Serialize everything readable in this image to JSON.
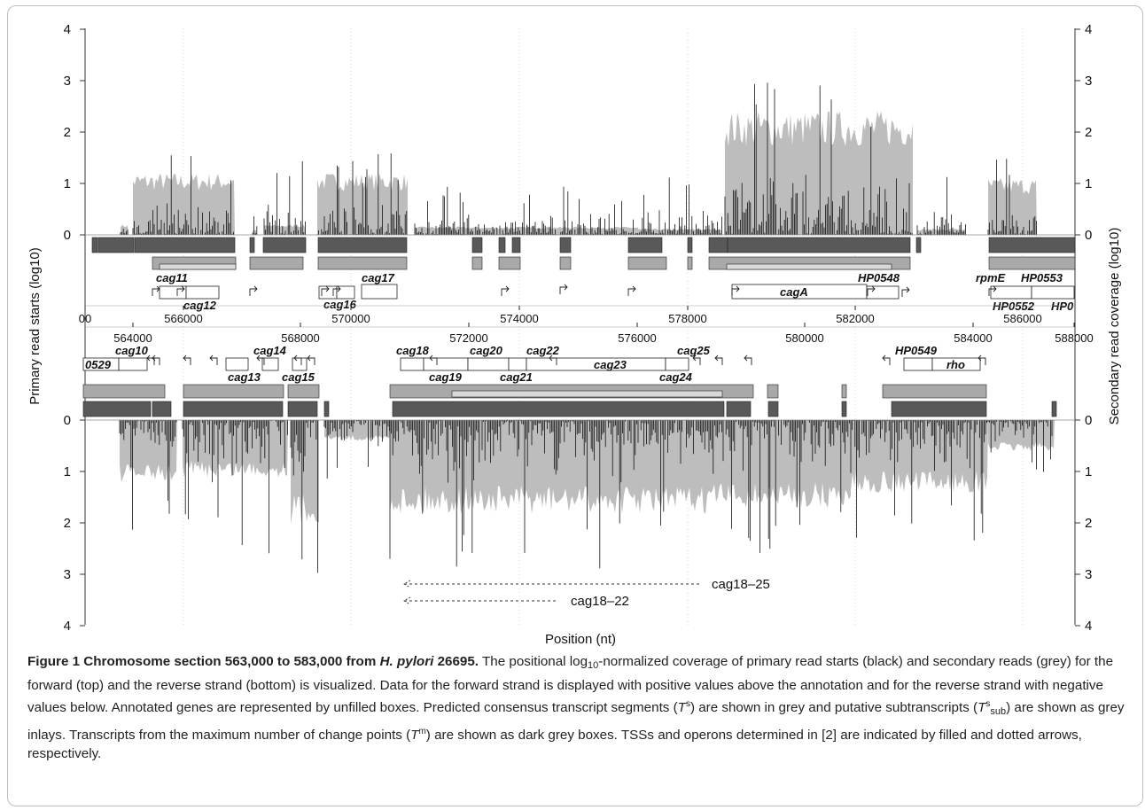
{
  "chart_data": {
    "type": "area",
    "xlabel": "Position (nt)",
    "ylabel_left": "Primary read starts (log10)",
    "ylabel_right": "Secondary read coverage (log10)",
    "yticks": [
      0,
      1,
      2,
      3,
      4
    ],
    "forward_axis_ticks": [
      "00",
      "566000",
      "570000",
      "574000",
      "578000",
      "582000",
      "586000"
    ],
    "reverse_axis_ticks": [
      "564000",
      "568000",
      "572000",
      "576000",
      "580000",
      "584000",
      "588000"
    ],
    "forward_genes": [
      "cag11",
      "cag12",
      "cag16",
      "cag17",
      "cagA",
      "HP0548",
      "rpmE",
      "HP0553",
      "HP0552",
      "HP0"
    ],
    "reverse_genes": [
      "cag10",
      "0529",
      "cag14",
      "cag13",
      "cag15",
      "cag18",
      "cag19",
      "cag20",
      "cag21",
      "cag22",
      "cag23",
      "cag24",
      "cag25",
      "HP0549",
      "rho"
    ],
    "operons": [
      "cag18–25",
      "cag18–22"
    ],
    "series": [
      {
        "name": "primary read starts (black)",
        "color": "#111111"
      },
      {
        "name": "secondary reads (grey)",
        "color": "#bdbdbd"
      }
    ]
  },
  "caption": {
    "title": "Figure 1 Chromosome section 563,000 to 583,000 from",
    "title_species": "H. pylori",
    "title_strain": "26695.",
    "s1a": "The positional log",
    "s1_sub": "10",
    "s1b": "-normalized coverage of primary read starts (black) and secondary reads (grey) for the forward (top) and the reverse strand (bottom) is visualized. Data for the forward strand is displayed with positive values above the annotation and for the reverse strand with negative values below. Annotated genes are represented by unfilled boxes. Predicted consensus transcript segments (",
    "ts_T": "T",
    "ts_sup": "s",
    "s2": ") are shown in grey and putative subtranscripts (",
    "tsub_T": "T",
    "tsub_sup": "s",
    "tsub_sub": "sub",
    "s3": ") are shown as grey inlays. Transcripts from the maximum number of change points (",
    "tm_T": "T",
    "tm_sup": "m",
    "s4": ") are shown as dark grey boxes. TSSs and operons determined in [2] are indicated by filled and dotted arrows, respectively."
  }
}
